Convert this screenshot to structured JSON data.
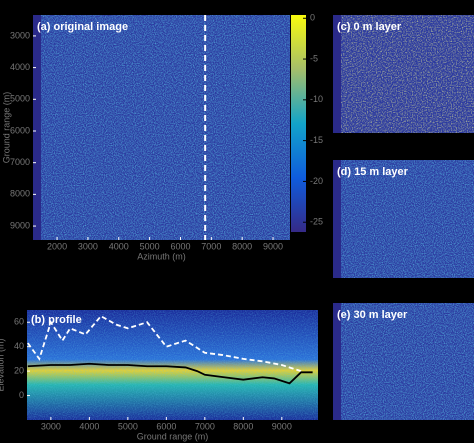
{
  "chart_data": [
    {
      "type": "image",
      "title": "(a) original image",
      "xlabel": "Azimuth (m)",
      "ylabel": "Ground range (m)",
      "xlim": [
        1220,
        9550
      ],
      "ylim": [
        2340,
        9440
      ],
      "yaxis_reversed": true,
      "xticks": [
        2000,
        3000,
        4000,
        5000,
        6000,
        7000,
        8000,
        9000
      ],
      "yticks": [
        3000,
        4000,
        5000,
        6000,
        7000,
        8000,
        9000
      ],
      "clim": [
        -26.2,
        0.4
      ],
      "cticks": [
        0,
        -5,
        -10,
        -15,
        -20,
        -25
      ]
    },
    {
      "type": "line",
      "title": "(b) profile",
      "xlabel": "Ground range (m)",
      "ylabel": "Elevation (m)",
      "xlim": [
        2380,
        9940
      ],
      "ylim": [
        -20,
        70
      ],
      "xticks": [
        3000,
        4000,
        5000,
        6000,
        7000,
        8000,
        9000
      ],
      "yticks": [
        0,
        20,
        40,
        60
      ],
      "series": [
        {
          "color": "#ffffff",
          "linestyle": "dashed",
          "x": [
            2400,
            2700,
            3000,
            3300,
            3500,
            3900,
            4300,
            4700,
            5000,
            5500,
            5800,
            6000,
            6500,
            7000,
            7500,
            8000,
            8500,
            9000,
            9500
          ],
          "values": [
            43,
            30,
            60,
            45,
            55,
            50,
            65,
            58,
            55,
            60,
            48,
            40,
            45,
            35,
            33,
            30,
            28,
            25,
            20
          ]
        },
        {
          "color": "#000000",
          "linestyle": "solid",
          "x": [
            2400,
            3000,
            3500,
            4000,
            4500,
            5000,
            5500,
            6000,
            6500,
            6800,
            7000,
            7500,
            8000,
            8500,
            8800,
            9200,
            9300,
            9500,
            9800
          ],
          "values": [
            24,
            25,
            25,
            26,
            25,
            25,
            24,
            24,
            23,
            20,
            17,
            15,
            13,
            15,
            14,
            10,
            13,
            19,
            19
          ]
        }
      ]
    },
    {
      "type": "image",
      "title": "(c) 0 m layer"
    },
    {
      "type": "image",
      "title": "(d) 15 m layer"
    },
    {
      "type": "image",
      "title": "(e) 30 m layer"
    }
  ]
}
